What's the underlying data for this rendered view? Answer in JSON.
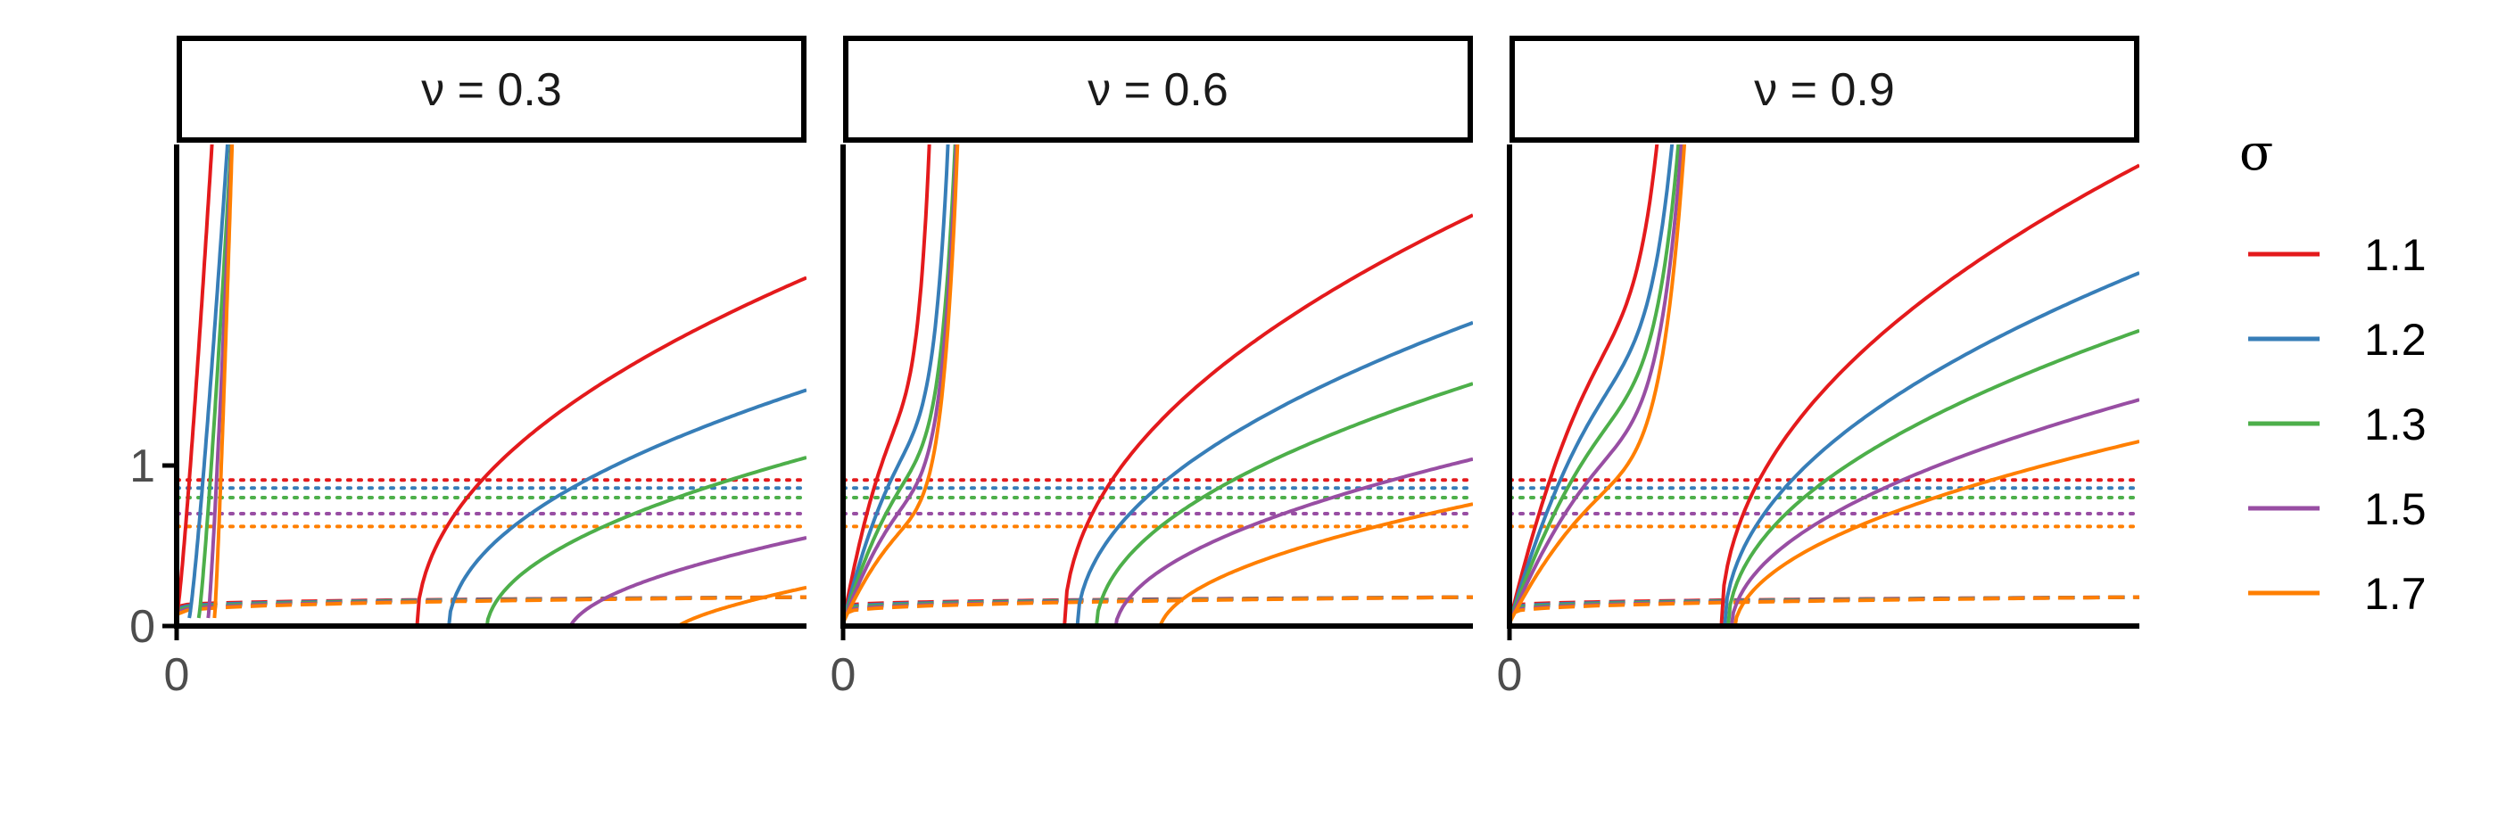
{
  "chart_data": {
    "type": "line",
    "facet_variable": "ν",
    "panels": [
      {
        "label": "ν = 0.3",
        "nu": 0.3
      },
      {
        "label": "ν = 0.6",
        "nu": 0.6
      },
      {
        "label": "ν = 0.9",
        "nu": 0.9
      }
    ],
    "x_ticks": [
      "0"
    ],
    "y_ticks": [
      {
        "value": 0,
        "label": "0"
      },
      {
        "value": 1,
        "label": "1"
      }
    ],
    "ylim": [
      0,
      3
    ],
    "grid": false,
    "legend": {
      "title": "σ",
      "position": "right",
      "items": [
        {
          "label": "1.1",
          "sigma": 1.1,
          "color": "#e41a1c"
        },
        {
          "label": "1.2",
          "sigma": 1.2,
          "color": "#377eb8"
        },
        {
          "label": "1.3",
          "sigma": 1.3,
          "color": "#4daf4a"
        },
        {
          "label": "1.5",
          "sigma": 1.5,
          "color": "#984ea3"
        },
        {
          "label": "1.7",
          "sigma": 1.7,
          "color": "#ff7f00"
        }
      ]
    },
    "line_styles": [
      "solid",
      "dashed",
      "dotted"
    ],
    "dotted_levels": [
      0.91,
      0.86,
      0.8,
      0.7,
      0.62
    ],
    "dashed_range": [
      0.12,
      0.18
    ],
    "right_curve_start": [
      [
        0.38,
        0.43,
        0.49,
        0.62,
        0.78
      ],
      [
        0.35,
        0.37,
        0.4,
        0.43,
        0.5
      ],
      [
        0.335,
        0.34,
        0.345,
        0.35,
        0.355
      ]
    ],
    "right_curve_end": [
      [
        2.17,
        1.47,
        1.05,
        0.55,
        0.24
      ],
      [
        2.56,
        1.89,
        1.51,
        1.04,
        0.76
      ],
      [
        2.87,
        2.2,
        1.84,
        1.41,
        1.15
      ]
    ]
  }
}
